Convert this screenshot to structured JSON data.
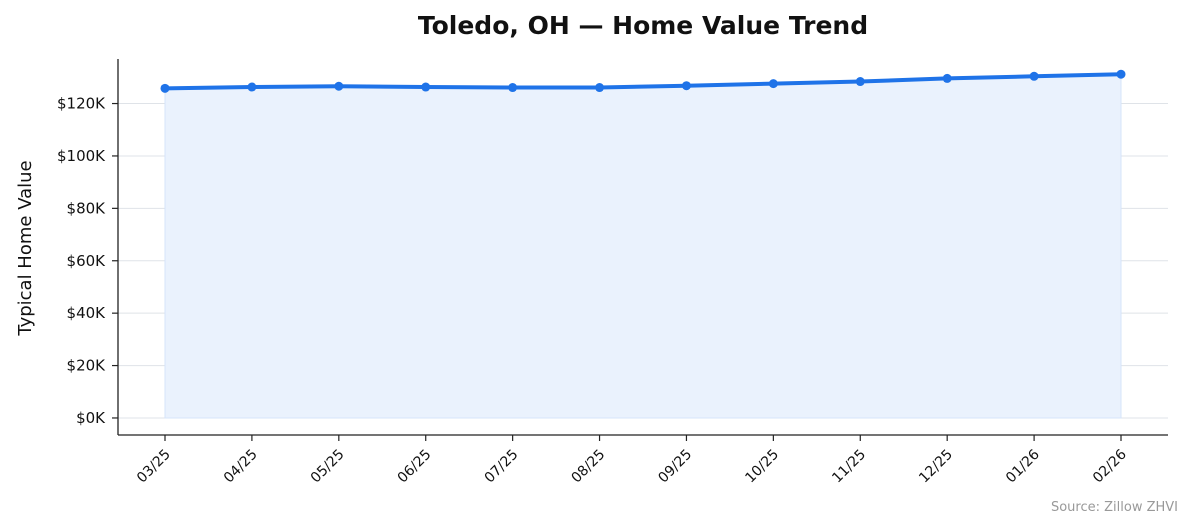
{
  "chart_data": {
    "type": "area",
    "title": "Toledo, OH — Home Value Trend",
    "xlabel": "",
    "ylabel": "Typical Home Value",
    "categories": [
      "03/25",
      "04/25",
      "05/25",
      "06/25",
      "07/25",
      "08/25",
      "09/25",
      "10/25",
      "11/25",
      "12/25",
      "01/26",
      "02/26"
    ],
    "values": [
      125800,
      126300,
      126600,
      126300,
      126100,
      126100,
      126800,
      127600,
      128400,
      129600,
      130400,
      131200
    ],
    "ylim": [
      -6500,
      137000
    ],
    "yticks": [
      0,
      20000,
      40000,
      60000,
      80000,
      100000,
      120000
    ],
    "ytick_labels": [
      "$0K",
      "$20K",
      "$40K",
      "$60K",
      "$80K",
      "$100K",
      "$120K"
    ],
    "grid": true,
    "line_color": "#1f73e8",
    "fill_color": "#eaf2fd",
    "source": "Source: Zillow ZHVI"
  }
}
